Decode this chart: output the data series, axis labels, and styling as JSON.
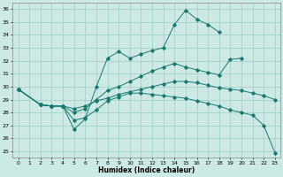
{
  "xlabel": "Humidex (Indice chaleur)",
  "xlim": [
    -0.5,
    23.5
  ],
  "ylim": [
    24.5,
    36.5
  ],
  "xticks": [
    0,
    1,
    2,
    3,
    4,
    5,
    6,
    7,
    8,
    9,
    10,
    11,
    12,
    13,
    14,
    15,
    16,
    17,
    18,
    19,
    20,
    21,
    22,
    23
  ],
  "yticks": [
    25,
    26,
    27,
    28,
    29,
    30,
    31,
    32,
    33,
    34,
    35,
    36
  ],
  "bg_color": "#cce9e5",
  "grid_color": "#a0cdc8",
  "line_color": "#1a7a6e",
  "lines": [
    {
      "x": [
        0,
        2,
        3,
        4,
        5,
        6,
        7,
        8,
        9,
        10,
        11,
        12,
        13,
        14,
        15,
        16,
        17,
        18,
        19,
        20,
        21,
        22,
        23
      ],
      "y": [
        29.8,
        28.6,
        28.5,
        28.5,
        26.7,
        27.5,
        30.0,
        32.2,
        32.7,
        32.2,
        32.5,
        32.8,
        33.0,
        34.8,
        35.9,
        35.2,
        34.8,
        34.2,
        null,
        null,
        null,
        null,
        null
      ]
    },
    {
      "x": [
        0,
        2,
        3,
        4,
        5,
        6,
        7,
        8,
        9,
        10,
        11,
        12,
        13,
        14,
        15,
        16,
        17,
        18,
        19,
        20
      ],
      "y": [
        29.8,
        28.6,
        28.5,
        28.5,
        28.0,
        28.3,
        29.0,
        29.7,
        30.0,
        30.4,
        30.8,
        31.2,
        31.5,
        31.8,
        31.5,
        31.3,
        31.1,
        30.9,
        32.1,
        32.2
      ]
    },
    {
      "x": [
        0,
        2,
        3,
        4,
        5,
        6,
        7,
        8,
        9,
        10,
        11,
        12,
        13,
        14,
        15,
        16,
        17,
        18,
        19,
        20,
        21,
        22,
        23
      ],
      "y": [
        29.8,
        28.6,
        28.5,
        28.5,
        28.3,
        28.5,
        28.9,
        29.1,
        29.4,
        29.6,
        29.8,
        30.0,
        30.2,
        30.4,
        30.4,
        30.3,
        30.1,
        29.9,
        29.8,
        29.7,
        29.5,
        29.3,
        29.0
      ]
    },
    {
      "x": [
        0,
        2,
        3,
        4,
        5,
        6,
        7,
        8,
        9,
        10,
        11,
        12,
        13,
        14,
        15,
        16,
        17,
        18,
        19,
        20,
        21,
        22,
        23
      ],
      "y": [
        29.8,
        28.6,
        28.5,
        28.5,
        27.4,
        27.6,
        28.2,
        28.9,
        29.2,
        29.5,
        29.5,
        29.4,
        29.3,
        29.2,
        29.1,
        28.9,
        28.7,
        28.5,
        28.2,
        28.0,
        27.8,
        27.0,
        24.9
      ]
    }
  ]
}
